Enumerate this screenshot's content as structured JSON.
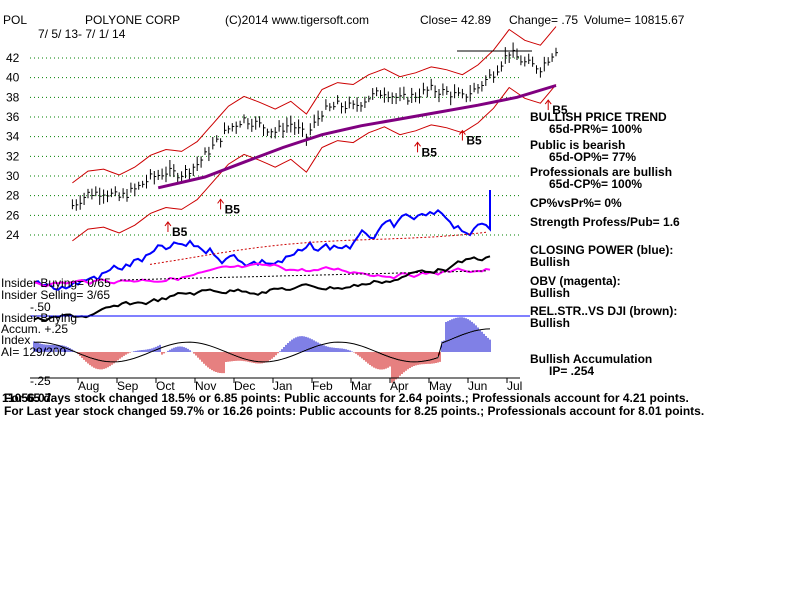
{
  "header": {
    "ticker": "POL",
    "company": "POLYONE CORP",
    "copyright": "(C)2014 www.tigersoft.com",
    "close": "Close=  42.89",
    "change": "Change= .75",
    "volume": "Volume= 10815.67",
    "date_range": "7/ 5/ 13- 7/ 1/ 14"
  },
  "right_panel": {
    "trend_title": "BULLISH PRICE TREND",
    "pr": "65d-PR%= 100%",
    "public": "Public is bearish",
    "op": "65d-OP%= 77%",
    "pros": "Professionals are bullish",
    "cp": "65d-CP%= 100%",
    "cpvspr": "CP%vsPr%=  0%",
    "strength": "Strength Profess/Pub= 1.6",
    "closing_power": "CLOSING POWER (blue):",
    "closing_power_status": "Bullish",
    "obv": "OBV (magenta):",
    "obv_status": "Bullish",
    "relstr": "REL.STR..VS DJI (brown):",
    "relstr_status": "Bullish",
    "accum": "Bullish Accumulation",
    "ip": "IP=  .254"
  },
  "left_panel": {
    "insider_buying": "Insider Buying= 0/65",
    "insider_selling": "Insider Selling= 3/65",
    "minus50": "-.50",
    "insider_buying2": "Insider Buying",
    "accum": "Accum. +.25",
    "index": "Index",
    "ai": "AI= 129/200",
    "minus25": "-.25",
    "overprint": "11056.07"
  },
  "footer": {
    "line1": "For 65 days stock changed  18.5% or  6.85 points:  Public accounts for  2.64 points.;  Professionals account for  4.21 points.",
    "line2": "For Last year stock changed  59.7% or  16.26 points:  Public accounts for  8.25 points.;  Professionals account for  8.01 points."
  },
  "signals": [
    {
      "label": "B5",
      "month_index": 3.4,
      "price": 26.2
    },
    {
      "label": "B5",
      "month_index": 2.05,
      "price": 23.9
    },
    {
      "label": "B5",
      "month_index": 8.45,
      "price": 32.0
    },
    {
      "label": "B5",
      "month_index": 9.6,
      "price": 33.2
    },
    {
      "label": "B5",
      "month_index": 11.8,
      "price": 36.3
    }
  ],
  "colors": {
    "closing_power": "#0000ff",
    "obv": "#ff00ff",
    "relstr": "#000000",
    "band": "#cc0000",
    "ma": "#800080",
    "accum_pos": "#0000cc",
    "accum_neg": "#cc0000",
    "signal": "#cc0000",
    "grid": "#008000",
    "index_line": "#0000ff"
  },
  "chart_data": {
    "type": "line",
    "title": "POLYONE CORP",
    "x_ticks": [
      "Aug",
      "Sep",
      "Oct",
      "Nov",
      "Dec",
      "Jan",
      "Feb",
      "Mar",
      "Apr",
      "May",
      "Jun",
      "Jul"
    ],
    "y_ticks": [
      24,
      26,
      28,
      30,
      32,
      34,
      36,
      38,
      40,
      42
    ],
    "ylim": [
      22,
      44
    ],
    "price_close": {
      "month_index": [
        -0.4,
        0.0,
        0.4,
        0.8,
        1.2,
        1.6,
        2.0,
        2.4,
        2.8,
        3.2,
        3.6,
        4.0,
        4.4,
        4.8,
        5.2,
        5.6,
        6.0,
        6.4,
        6.8,
        7.2,
        7.6,
        8.0,
        8.4,
        8.8,
        9.2,
        9.6,
        10.0,
        10.4,
        10.8,
        11.2,
        11.6,
        12.0
      ],
      "values": [
        27.0,
        28.2,
        28.4,
        27.8,
        28.6,
        29.8,
        30.4,
        30.2,
        31.2,
        33.0,
        34.8,
        35.8,
        35.2,
        34.5,
        35.3,
        34.0,
        36.5,
        37.2,
        37.0,
        38.0,
        38.6,
        37.8,
        38.2,
        38.8,
        38.5,
        38.0,
        39.0,
        40.5,
        42.6,
        41.5,
        41.0,
        42.89
      ]
    },
    "moving_average": {
      "month_index": [
        1.8,
        3.0,
        4.0,
        5.0,
        6.0,
        7.0,
        8.0,
        9.0,
        10.0,
        11.0,
        12.0
      ],
      "values": [
        28.8,
        29.9,
        31.4,
        32.9,
        34.2,
        35.1,
        35.8,
        36.5,
        37.2,
        38.0,
        39.2
      ]
    }
  }
}
